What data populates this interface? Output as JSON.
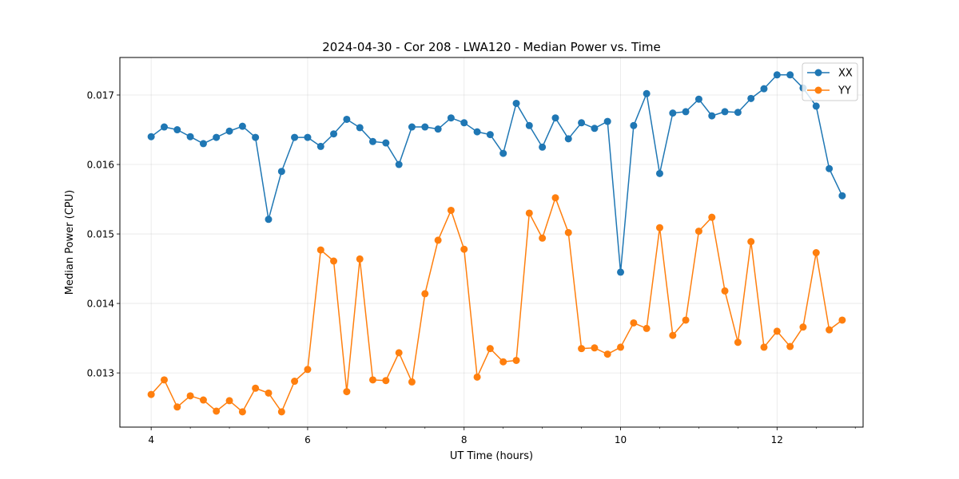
{
  "chart_data": {
    "type": "line",
    "title": "2024-04-30 - Cor 208 - LWA120 - Median Power vs. Time",
    "xlabel": "UT Time (hours)",
    "ylabel": "Median Power (CPU)",
    "xlim": [
      3.6,
      13.1
    ],
    "ylim": [
      0.01222,
      0.01754
    ],
    "xticks": [
      4,
      6,
      8,
      10,
      12
    ],
    "xtick_labels": [
      "4",
      "6",
      "8",
      "10",
      "12"
    ],
    "yticks": [
      0.013,
      0.014,
      0.015,
      0.016,
      0.017
    ],
    "ytick_labels": [
      "0.013",
      "0.014",
      "0.015",
      "0.016",
      "0.017"
    ],
    "grid": true,
    "legend": "top-right",
    "x": [
      4.0,
      4.167,
      4.333,
      4.5,
      4.667,
      4.833,
      5.0,
      5.167,
      5.333,
      5.5,
      5.667,
      5.833,
      6.0,
      6.167,
      6.333,
      6.5,
      6.667,
      6.833,
      7.0,
      7.167,
      7.333,
      7.5,
      7.667,
      7.833,
      8.0,
      8.167,
      8.333,
      8.5,
      8.667,
      8.833,
      9.0,
      9.167,
      9.333,
      9.5,
      9.667,
      9.833,
      10.0,
      10.167,
      10.333,
      10.5,
      10.667,
      10.833,
      11.0,
      11.167,
      11.333,
      11.5,
      11.667,
      11.833,
      12.0,
      12.167,
      12.333,
      12.5,
      12.667,
      12.833
    ],
    "series": [
      {
        "name": "XX",
        "color": "#1f77b4",
        "values": [
          0.0164,
          0.01654,
          0.0165,
          0.0164,
          0.0163,
          0.01639,
          0.01648,
          0.01655,
          0.01639,
          0.01521,
          0.0159,
          0.01639,
          0.01639,
          0.01626,
          0.01644,
          0.01665,
          0.01653,
          0.01633,
          0.01631,
          0.016,
          0.01654,
          0.01654,
          0.01651,
          0.01667,
          0.0166,
          0.01647,
          0.01643,
          0.01616,
          0.01688,
          0.01656,
          0.01625,
          0.01667,
          0.01637,
          0.0166,
          0.01652,
          0.01662,
          0.01445,
          0.01656,
          0.01702,
          0.01587,
          0.01674,
          0.01676,
          0.01694,
          0.0167,
          0.01676,
          0.01675,
          0.01695,
          0.01709,
          0.01729,
          0.01729,
          0.0171,
          0.01684,
          0.01594,
          0.01555
        ]
      },
      {
        "name": "YY",
        "color": "#ff7f0e",
        "values": [
          0.01269,
          0.0129,
          0.01251,
          0.01267,
          0.01261,
          0.01245,
          0.0126,
          0.01244,
          0.01278,
          0.01271,
          0.01244,
          0.01288,
          0.01305,
          0.01477,
          0.01461,
          0.01273,
          0.01464,
          0.0129,
          0.01289,
          0.01329,
          0.01287,
          0.01414,
          0.01491,
          0.01534,
          0.01478,
          0.01294,
          0.01335,
          0.01316,
          0.01318,
          0.0153,
          0.01494,
          0.01552,
          0.01502,
          0.01335,
          0.01336,
          0.01327,
          0.01337,
          0.01372,
          0.01364,
          0.01509,
          0.01354,
          0.01376,
          0.01504,
          0.01524,
          0.01418,
          0.01344,
          0.01489,
          0.01337,
          0.0136,
          0.01338,
          0.01366,
          0.01473,
          0.01362,
          0.01376
        ]
      }
    ]
  }
}
